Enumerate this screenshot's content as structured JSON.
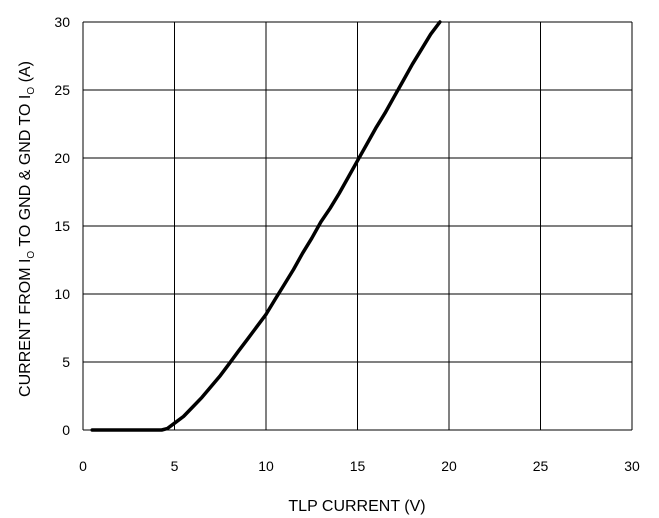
{
  "chart_data": {
    "type": "line",
    "xlabel": "TLP CURRENT (V)",
    "ylabel": {
      "p1": "CURRENT FROM I",
      "s1": "O",
      "p2": " TO GND & GND TO I",
      "s2": "O",
      "p3": " (A)"
    },
    "xlim": [
      0,
      30
    ],
    "ylim": [
      0,
      30
    ],
    "xticks": [
      "0",
      "5",
      "10",
      "15",
      "20",
      "25",
      "30"
    ],
    "yticks": [
      "0",
      "5",
      "10",
      "15",
      "20",
      "25",
      "30"
    ],
    "grid": true,
    "legend": "none",
    "series": [
      {
        "color": "#000000",
        "x": [
          0.5,
          2,
          3,
          4.3,
          4.6,
          5,
          5.5,
          6,
          6.5,
          7,
          7.5,
          8,
          8.5,
          9,
          9.5,
          10,
          10.5,
          11,
          11.5,
          12,
          12.5,
          13,
          13.5,
          14,
          14.5,
          15,
          15.5,
          16,
          16.5,
          17,
          17.5,
          18,
          18.5,
          19,
          19.5
        ],
        "y": [
          0,
          0,
          0,
          0,
          0.1,
          0.5,
          1.0,
          1.7,
          2.4,
          3.2,
          4.0,
          4.9,
          5.8,
          6.7,
          7.6,
          8.5,
          9.6,
          10.7,
          11.8,
          13.0,
          14.1,
          15.3,
          16.3,
          17.4,
          18.6,
          19.8,
          21.0,
          22.2,
          23.3,
          24.5,
          25.7,
          26.9,
          28.0,
          29.1,
          30.0
        ]
      }
    ]
  }
}
